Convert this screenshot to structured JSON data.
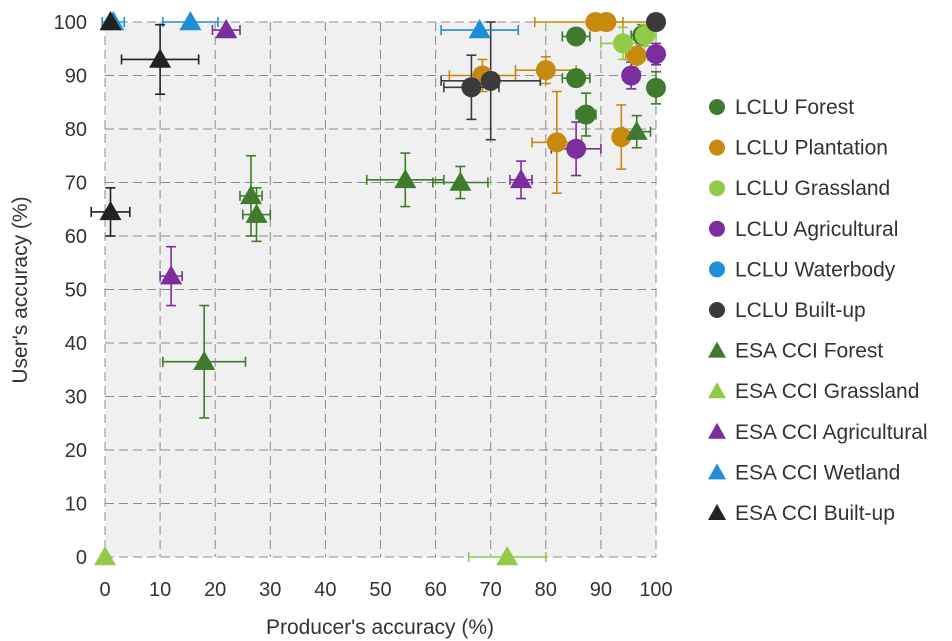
{
  "chart_data": {
    "type": "scatter",
    "title": "",
    "xlabel": "Producer's accuracy (%)",
    "ylabel": "User's accuracy (%)",
    "xlim": [
      0,
      100
    ],
    "ylim": [
      0,
      100
    ],
    "xticks": [
      "0",
      "10",
      "20",
      "30",
      "40",
      "50",
      "60",
      "70",
      "80",
      "90",
      "100"
    ],
    "yticks": [
      "0",
      "10",
      "20",
      "30",
      "40",
      "50",
      "60",
      "70",
      "80",
      "90",
      "100"
    ],
    "grid": true,
    "legend_position": "right",
    "series": [
      {
        "name": "LCLU Forest",
        "marker": "circle",
        "color": "#3f7a2e",
        "points": [
          {
            "x": 85.5,
            "y": 97.3,
            "xerr": 2.5,
            "yerr": 0
          },
          {
            "x": 85.5,
            "y": 89.5,
            "xerr": 2.5,
            "yerr": 1.5
          },
          {
            "x": 87.3,
            "y": 82.7,
            "xerr": 1.8,
            "yerr": 4
          },
          {
            "x": 100,
            "y": 87.7,
            "xerr": 0,
            "yerr": 3
          },
          {
            "x": 97.5,
            "y": 97.5,
            "xerr": 2,
            "yerr": 2
          }
        ]
      },
      {
        "name": "LCLU Plantation",
        "marker": "circle",
        "color": "#c8890f",
        "points": [
          {
            "x": 89,
            "y": 100,
            "xerr": 11,
            "yerr": 0
          },
          {
            "x": 91,
            "y": 100,
            "xerr": 3,
            "yerr": 0
          },
          {
            "x": 80,
            "y": 91,
            "xerr": 5.5,
            "yerr": 2.5
          },
          {
            "x": 68.5,
            "y": 90,
            "xerr": 6,
            "yerr": 3
          },
          {
            "x": 82,
            "y": 77.5,
            "xerr": 4.5,
            "yerr": 9.5
          },
          {
            "x": 93.7,
            "y": 78.5,
            "xerr": 1,
            "yerr": 6
          },
          {
            "x": 96.5,
            "y": 93.7,
            "xerr": 2,
            "yerr": 3
          }
        ]
      },
      {
        "name": "LCLU Grassland",
        "marker": "circle",
        "color": "#8fcb46",
        "points": [
          {
            "x": 94,
            "y": 96,
            "xerr": 4,
            "yerr": 3
          },
          {
            "x": 98,
            "y": 97.5,
            "xerr": 2,
            "yerr": 2
          }
        ]
      },
      {
        "name": "LCLU Agricultural",
        "marker": "circle",
        "color": "#7d2e9e",
        "points": [
          {
            "x": 100,
            "y": 94,
            "xerr": 0,
            "yerr": 2
          },
          {
            "x": 95.5,
            "y": 90,
            "xerr": 1.5,
            "yerr": 2.5
          },
          {
            "x": 85.5,
            "y": 76.3,
            "xerr": 4.5,
            "yerr": 5
          }
        ]
      },
      {
        "name": "LCLU Waterbody",
        "marker": "circle",
        "color": "#1f8ed8",
        "points": []
      },
      {
        "name": "LCLU Built-up",
        "marker": "circle",
        "color": "#3b3b3b",
        "points": [
          {
            "x": 100,
            "y": 100,
            "xerr": 0,
            "yerr": 0
          },
          {
            "x": 66.5,
            "y": 87.8,
            "xerr": 5,
            "yerr": 6
          },
          {
            "x": 70,
            "y": 89,
            "xerr": 9,
            "yerr": 11
          }
        ]
      },
      {
        "name": "ESA CCI Forest",
        "marker": "triangle",
        "color": "#3f7a2e",
        "points": [
          {
            "x": 96.5,
            "y": 79.5,
            "xerr": 2.5,
            "yerr": 3
          },
          {
            "x": 54.5,
            "y": 70.5,
            "xerr": 7,
            "yerr": 5
          },
          {
            "x": 64.5,
            "y": 70,
            "xerr": 5,
            "yerr": 3
          },
          {
            "x": 26.5,
            "y": 67.5,
            "xerr": 2,
            "yerr": 7.5
          },
          {
            "x": 27.5,
            "y": 64,
            "xerr": 2.5,
            "yerr": 5
          },
          {
            "x": 18,
            "y": 36.5,
            "xerr": 7.5,
            "yerr": 10.5
          }
        ]
      },
      {
        "name": "ESA CCI Grassland",
        "marker": "triangle",
        "color": "#8fcb46",
        "points": [
          {
            "x": 0,
            "y": 0,
            "xerr": 0,
            "yerr": 0
          },
          {
            "x": 73,
            "y": 0,
            "xerr": 7,
            "yerr": 0
          }
        ]
      },
      {
        "name": "ESA CCI Agricultural",
        "marker": "triangle",
        "color": "#7d2e9e",
        "points": [
          {
            "x": 22,
            "y": 98.5,
            "xerr": 2.5,
            "yerr": 0
          },
          {
            "x": 75.5,
            "y": 70.5,
            "xerr": 2,
            "yerr": 3.5
          },
          {
            "x": 12,
            "y": 52.5,
            "xerr": 2,
            "yerr": 5.5
          }
        ]
      },
      {
        "name": "ESA CCI Wetland",
        "marker": "triangle",
        "color": "#1f8ed8",
        "points": [
          {
            "x": 1.5,
            "y": 100,
            "xerr": 2,
            "yerr": 0
          },
          {
            "x": 15.5,
            "y": 100,
            "xerr": 5,
            "yerr": 0
          },
          {
            "x": 68,
            "y": 98.5,
            "xerr": 7,
            "yerr": 0
          }
        ]
      },
      {
        "name": "ESA CCI Built-up",
        "marker": "triangle",
        "color": "#222222",
        "points": [
          {
            "x": 1,
            "y": 100,
            "xerr": 0,
            "yerr": 0
          },
          {
            "x": 10,
            "y": 93,
            "xerr": 7,
            "yerr": 6.5
          },
          {
            "x": 1,
            "y": 64.5,
            "xerr": 3.5,
            "yerr": 4.5
          }
        ]
      }
    ]
  }
}
